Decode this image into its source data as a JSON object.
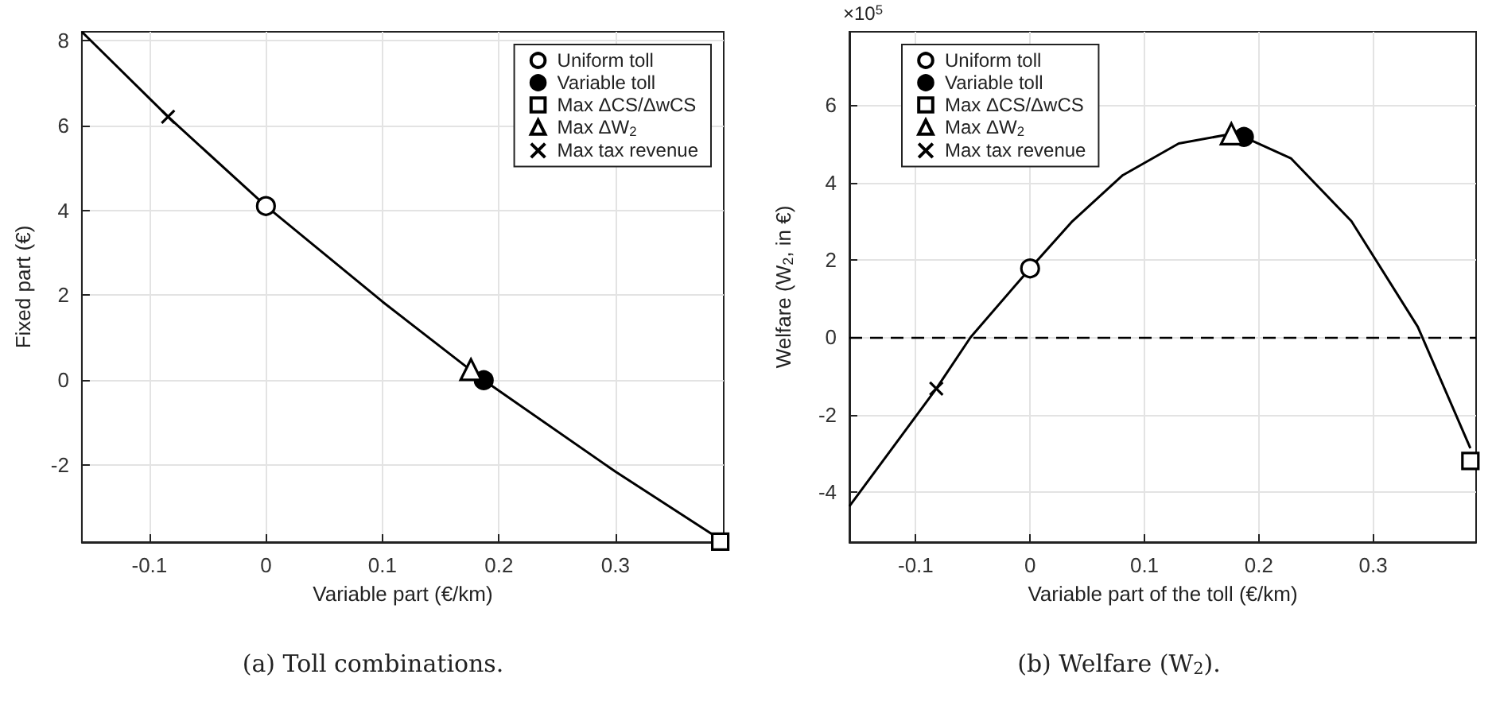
{
  "chart_data": [
    {
      "type": "line",
      "xlabel": "Variable part (€/km)",
      "ylabel": "Fixed part (€)",
      "xlim": [
        -0.158,
        0.393
      ],
      "ylim": [
        -3.81,
        8.2
      ],
      "xticks": [
        -0.1,
        0,
        0.1,
        0.2,
        0.3
      ],
      "yticks": [
        -2,
        0,
        2,
        4,
        6,
        8
      ],
      "grid": true,
      "legend": "top right",
      "annotations": [
        "(a) Toll combinations."
      ],
      "series": [
        {
          "color": "#000000",
          "marker": "none",
          "x": [
            -0.158,
            -0.084,
            0,
            0.1,
            0.187,
            0.3,
            0.393
          ],
          "values": [
            8.2,
            6.2,
            4.1,
            1.85,
            0,
            -2.15,
            -3.8
          ]
        },
        {
          "type": "scatter",
          "name": "Uniform toll",
          "color": "#000000",
          "marker": "circle",
          "x": [
            0
          ],
          "values": [
            4.1
          ]
        },
        {
          "type": "scatter",
          "name": "Variable toll",
          "color": "#000000",
          "colors": [
            "#000000"
          ],
          "marker": "circle",
          "x": [
            0.187
          ],
          "values": [
            0
          ]
        },
        {
          "type": "scatter",
          "name": "Max ΔCS/ΔwCS",
          "color": "#000000",
          "marker": "square",
          "x": [
            0.39
          ],
          "values": [
            -3.8
          ]
        },
        {
          "type": "scatter",
          "name": "Max ΔW$_{2}$",
          "color": "#000000",
          "marker": "triangle",
          "x": [
            0.176
          ],
          "values": [
            0.25
          ]
        },
        {
          "type": "scatter",
          "name": "Max tax revenue",
          "color": "#000000",
          "marker": "cross",
          "x": [
            -0.084
          ],
          "values": [
            6.2
          ]
        }
      ]
    },
    {
      "type": "line",
      "xlabel": "Variable part of the toll (€/km)",
      "ylabel": "Welfare (W$_{2}$, in €)",
      "xlim": [
        -0.158,
        0.39
      ],
      "ylim": [
        -5.3,
        7.9
      ],
      "xticks": [
        -0.1,
        0,
        0.1,
        0.2,
        0.3
      ],
      "yticks": [
        -4,
        -2,
        0,
        2,
        4,
        6
      ],
      "grid": true,
      "legend": "top left",
      "annotations": [
        "×10$^{5}$",
        "(b) Welfare (W$_{2}$)."
      ],
      "ref_lines": [
        {
          "axis": "y",
          "value": 0,
          "line_style": "dashed",
          "color": "#000000"
        }
      ],
      "series": [
        {
          "color": "#000000",
          "marker": "none",
          "x": [
            -0.158,
            -0.082,
            -0.052,
            0,
            0.037,
            0.081,
            0.13,
            0.176,
            0.187,
            0.228,
            0.281,
            0.339,
            0.385
          ],
          "values": [
            -4.37,
            -1.33,
            0,
            1.78,
            3.0,
            4.19,
            5.01,
            5.26,
            5.18,
            4.63,
            3.0,
            0.27,
            -2.87
          ]
        },
        {
          "type": "scatter",
          "name": "Uniform toll",
          "color": "#000000",
          "marker": "circle",
          "x": [
            0
          ],
          "values": [
            1.78
          ]
        },
        {
          "type": "scatter",
          "name": "Variable toll",
          "color": "#000000",
          "colors": [
            "#000000"
          ],
          "marker": "circle",
          "x": [
            0.187
          ],
          "values": [
            5.18
          ]
        },
        {
          "type": "scatter",
          "name": "Max ΔCS/ΔwCS",
          "color": "#000000",
          "marker": "square",
          "x": [
            0.385
          ],
          "values": [
            -3.2
          ]
        },
        {
          "type": "scatter",
          "name": "Max ΔW$_{2}$",
          "color": "#000000",
          "marker": "triangle",
          "x": [
            0.176
          ],
          "values": [
            5.26
          ]
        },
        {
          "type": "scatter",
          "name": "Max tax revenue",
          "color": "#000000",
          "marker": "cross",
          "x": [
            -0.082
          ],
          "values": [
            -1.33
          ]
        }
      ]
    }
  ]
}
